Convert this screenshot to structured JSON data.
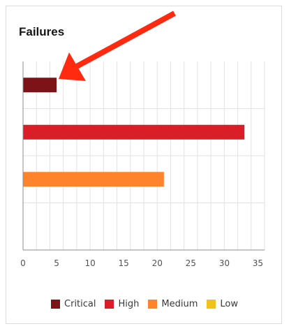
{
  "card": {
    "title": "Failures"
  },
  "chart_data": {
    "type": "bar",
    "orientation": "horizontal",
    "categories": [
      "Critical",
      "High",
      "Medium",
      "Low"
    ],
    "values": [
      5,
      33,
      21,
      0
    ],
    "colors": [
      "#7d1319",
      "#da1e28",
      "#ff832b",
      "#f1c21b"
    ],
    "xlim": [
      0,
      36
    ],
    "xticks": [
      0,
      5,
      10,
      15,
      20,
      25,
      30,
      35
    ],
    "grid": true,
    "legend_position": "bottom",
    "legend": [
      {
        "label": "Critical",
        "color": "#7d1319"
      },
      {
        "label": "High",
        "color": "#da1e28"
      },
      {
        "label": "Medium",
        "color": "#ff832b"
      },
      {
        "label": "Low",
        "color": "#f1c21b"
      }
    ]
  },
  "annotation": {
    "arrow_color": "#ff2a10"
  }
}
